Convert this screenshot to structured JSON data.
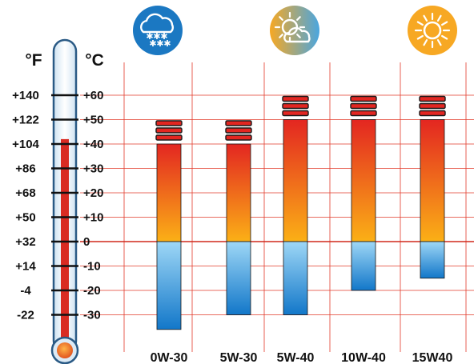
{
  "chart_data": {
    "type": "bar",
    "categories": [
      "0W-30",
      "5W-30",
      "5W-40",
      "10W-40",
      "15W40"
    ],
    "series": [
      {
        "values": [
          40,
          40,
          50,
          50,
          50
        ]
      },
      {
        "values": [
          -36,
          -30,
          -30,
          -20,
          -15
        ]
      }
    ],
    "xlabel": "",
    "ylabel": "",
    "y_unit_left": "°F",
    "y_unit_right": "°C",
    "ylim": [
      -40,
      65
    ],
    "yticks_c": [
      "+60",
      "+50",
      "+40",
      "+30",
      "+20",
      "+10",
      "0",
      "-10",
      "-20",
      "-30"
    ],
    "yticks_f": [
      "+140",
      "+122",
      "+104",
      "+86",
      "+68",
      "+50",
      "+32",
      "+14",
      "-4",
      "-22"
    ],
    "grid": true,
    "legend": "none",
    "weather_icons": [
      {
        "name": "snow-cloud-icon",
        "category": "0W-30"
      },
      {
        "name": "sun-cloud-icon",
        "category": "5W-40"
      },
      {
        "name": "sun-icon",
        "category": "15W40"
      }
    ],
    "thermometer_level_c": 42,
    "colors": {
      "grid": "#e23a2a",
      "zero_line": "#d0291c",
      "hot_top": "#e32621",
      "hot_bottom": "#fbb016",
      "cold_top": "#9ed7f6",
      "cold_bottom": "#1277c9",
      "mercury": "#d92b22",
      "snow_icon": "#1b78c2",
      "sun_icon": "#f7a823"
    }
  }
}
